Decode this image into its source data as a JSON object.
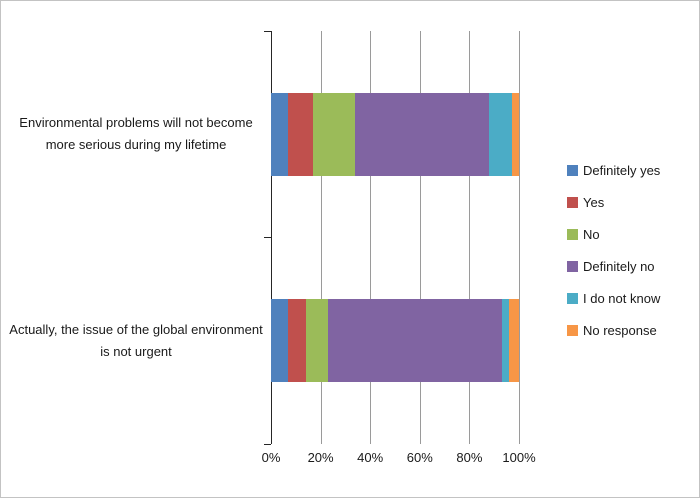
{
  "chart_data": {
    "type": "bar",
    "stacked": true,
    "orientation": "horizontal",
    "title": "",
    "xlabel": "",
    "ylabel": "",
    "grid": true,
    "legend_position": "right",
    "categories": [
      "Environmental problems will not become more serious during my lifetime",
      "Actually, the issue of the global environment is not urgent"
    ],
    "series": [
      {
        "name": "Definitely yes",
        "color": "#4F81BD",
        "values": [
          7,
          7
        ]
      },
      {
        "name": "Yes",
        "color": "#C0504D",
        "values": [
          10,
          7
        ]
      },
      {
        "name": "No",
        "color": "#9BBB59",
        "values": [
          17,
          9
        ]
      },
      {
        "name": "Definitely no",
        "color": "#8064A2",
        "values": [
          54,
          70
        ]
      },
      {
        "name": "I do not know",
        "color": "#4BACC6",
        "values": [
          9,
          3
        ]
      },
      {
        "name": "No response",
        "color": "#F79646",
        "values": [
          3,
          4
        ]
      }
    ],
    "x_axis": {
      "min": 0,
      "max": 100,
      "tick_step": 20,
      "tick_labels": [
        "0%",
        "20%",
        "40%",
        "60%",
        "80%",
        "100%"
      ]
    }
  }
}
